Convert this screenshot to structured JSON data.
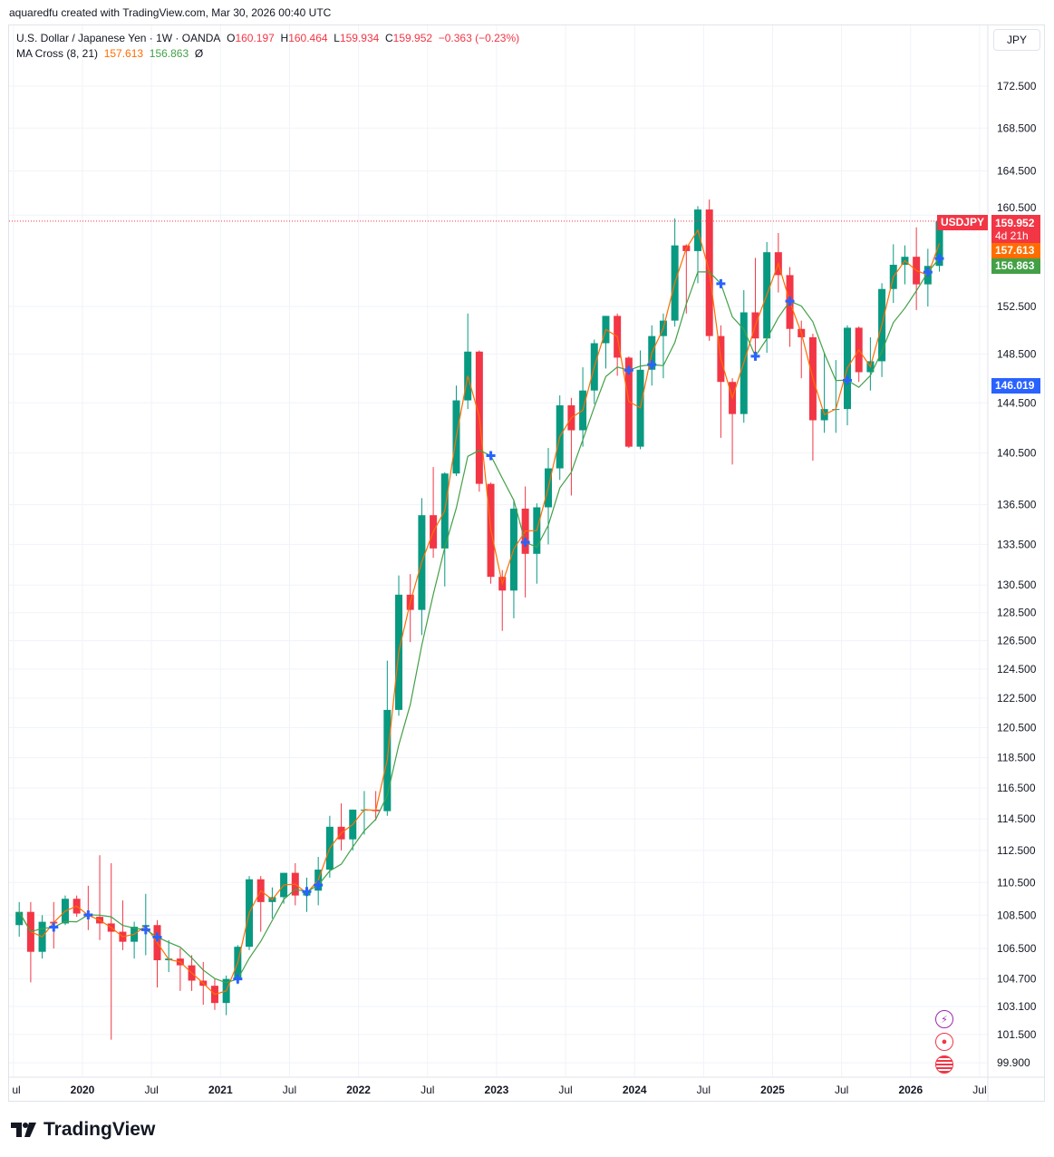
{
  "credit": "aquaredfu created with TradingView.com, Mar 30, 2026 00:40 UTC",
  "legend": {
    "symbol": "U.S. Dollar / Japanese Yen · 1W · OANDA",
    "o_label": "O",
    "open": "160.197",
    "h_label": "H",
    "high": "160.464",
    "l_label": "L",
    "low": "159.934",
    "c_label": "C",
    "close": "159.952",
    "change": "−0.363 (−0.23%)",
    "indicator": "MA Cross (8, 21)",
    "ma_fast": "157.613",
    "ma_slow": "156.863",
    "ma_extra": "Ø"
  },
  "currency_button": "JPY",
  "price_tags": {
    "symbol": "USDJPY",
    "last": "159.952",
    "countdown": "4d 21h",
    "ma_fast": "157.613",
    "ma_slow": "156.863",
    "cross_level": "146.019"
  },
  "colors": {
    "up": "#089981",
    "down": "#f23645",
    "ma_fast": "#ff6d00",
    "ma_slow": "#43a047",
    "cross": "#2962ff",
    "grid": "#f0f3fa"
  },
  "icons": [
    "lightning-icon",
    "record-icon",
    "us-flag-icon"
  ],
  "brand": "TradingView",
  "chart_data": {
    "type": "candlestick",
    "scale": "log",
    "ylim": [
      99.9,
      174
    ],
    "y_ticks": [
      "172.500",
      "168.500",
      "164.500",
      "160.500",
      "152.500",
      "148.500",
      "144.500",
      "140.500",
      "136.500",
      "133.500",
      "130.500",
      "128.500",
      "126.500",
      "124.500",
      "122.500",
      "120.500",
      "118.500",
      "116.500",
      "114.500",
      "112.500",
      "110.500",
      "108.500",
      "106.500",
      "104.700",
      "103.100",
      "101.500",
      "99.900"
    ],
    "x_ticks": [
      {
        "label": "ul",
        "t": 2019.5
      },
      {
        "label": "2020",
        "t": 2020
      },
      {
        "label": "Jul",
        "t": 2020.5
      },
      {
        "label": "2021",
        "t": 2021
      },
      {
        "label": "Jul",
        "t": 2021.5
      },
      {
        "label": "2022",
        "t": 2022
      },
      {
        "label": "Jul",
        "t": 2022.5
      },
      {
        "label": "2023",
        "t": 2023
      },
      {
        "label": "Jul",
        "t": 2023.5
      },
      {
        "label": "2024",
        "t": 2024
      },
      {
        "label": "Jul",
        "t": 2024.5
      },
      {
        "label": "2025",
        "t": 2025
      },
      {
        "label": "Jul",
        "t": 2025.5
      },
      {
        "label": "2026",
        "t": 2026
      },
      {
        "label": "Jul",
        "t": 2026.5
      }
    ],
    "ma_periods": [
      8,
      21
    ],
    "start": "2019-07",
    "ohlc": [
      [
        107.9,
        109.3,
        107.2,
        108.7
      ],
      [
        108.7,
        109.3,
        104.5,
        106.3
      ],
      [
        106.3,
        108.5,
        105.9,
        108.1
      ],
      [
        108.1,
        109.3,
        106.5,
        108.0
      ],
      [
        108.0,
        109.7,
        107.9,
        109.5
      ],
      [
        109.5,
        109.7,
        108.4,
        108.6
      ],
      [
        108.6,
        110.3,
        107.6,
        108.4
      ],
      [
        108.4,
        112.2,
        107.0,
        108.0
      ],
      [
        108.0,
        111.7,
        101.2,
        107.5
      ],
      [
        107.5,
        109.4,
        106.4,
        106.9
      ],
      [
        106.9,
        108.1,
        105.9,
        107.8
      ],
      [
        107.8,
        109.8,
        106.1,
        107.9
      ],
      [
        107.9,
        108.2,
        104.2,
        105.8
      ],
      [
        105.8,
        107.0,
        105.1,
        105.9
      ],
      [
        105.9,
        106.5,
        104.0,
        105.5
      ],
      [
        105.5,
        106.1,
        104.0,
        104.6
      ],
      [
        104.6,
        105.7,
        103.2,
        104.3
      ],
      [
        104.3,
        104.7,
        102.9,
        103.3
      ],
      [
        103.3,
        104.9,
        102.6,
        104.7
      ],
      [
        104.7,
        106.7,
        104.4,
        106.6
      ],
      [
        106.6,
        110.9,
        106.4,
        110.7
      ],
      [
        110.7,
        110.9,
        107.5,
        109.3
      ],
      [
        109.3,
        110.2,
        108.3,
        109.6
      ],
      [
        109.6,
        111.1,
        109.2,
        111.1
      ],
      [
        111.1,
        111.7,
        109.1,
        109.7
      ],
      [
        109.7,
        110.8,
        108.7,
        110.0
      ],
      [
        110.0,
        112.1,
        109.1,
        111.3
      ],
      [
        111.3,
        114.7,
        110.8,
        114.0
      ],
      [
        114.0,
        115.5,
        112.5,
        113.2
      ],
      [
        113.2,
        115.1,
        112.5,
        115.1
      ],
      [
        115.1,
        116.3,
        113.5,
        115.1
      ],
      [
        115.1,
        116.3,
        114.4,
        115.0
      ],
      [
        115.0,
        125.1,
        114.7,
        121.7
      ],
      [
        121.7,
        131.2,
        121.3,
        129.8
      ],
      [
        129.8,
        131.3,
        126.4,
        128.7
      ],
      [
        128.7,
        137.0,
        126.9,
        135.7
      ],
      [
        135.7,
        139.4,
        132.5,
        133.2
      ],
      [
        133.2,
        139.0,
        130.4,
        138.9
      ],
      [
        138.9,
        145.9,
        138.7,
        144.7
      ],
      [
        144.7,
        151.9,
        144.0,
        148.7
      ],
      [
        148.7,
        148.8,
        137.5,
        138.1
      ],
      [
        138.1,
        138.2,
        130.6,
        131.1
      ],
      [
        131.1,
        131.6,
        127.2,
        130.1
      ],
      [
        130.1,
        136.9,
        128.1,
        136.2
      ],
      [
        136.2,
        137.9,
        129.6,
        132.8
      ],
      [
        132.8,
        136.6,
        130.6,
        136.3
      ],
      [
        136.3,
        140.9,
        133.5,
        139.3
      ],
      [
        139.3,
        145.1,
        138.4,
        144.3
      ],
      [
        144.3,
        144.9,
        137.2,
        142.3
      ],
      [
        142.3,
        147.4,
        141.0,
        145.5
      ],
      [
        145.5,
        149.7,
        144.4,
        149.4
      ],
      [
        149.4,
        151.7,
        147.3,
        151.7
      ],
      [
        151.7,
        151.9,
        146.7,
        148.2
      ],
      [
        148.2,
        148.3,
        140.9,
        141.0
      ],
      [
        141.0,
        148.8,
        140.8,
        147.2
      ],
      [
        147.2,
        150.9,
        145.9,
        150.0
      ],
      [
        150.0,
        151.9,
        146.5,
        151.3
      ],
      [
        151.3,
        160.2,
        150.8,
        157.8
      ],
      [
        157.8,
        157.9,
        151.9,
        157.3
      ],
      [
        157.3,
        161.3,
        154.5,
        161.0
      ],
      [
        161.0,
        161.9,
        149.6,
        150.0
      ],
      [
        150.0,
        150.9,
        141.7,
        146.2
      ],
      [
        146.2,
        146.5,
        139.6,
        143.6
      ],
      [
        143.6,
        153.9,
        142.9,
        152.0
      ],
      [
        152.0,
        156.7,
        148.6,
        149.8
      ],
      [
        149.8,
        158.1,
        148.6,
        157.2
      ],
      [
        157.2,
        158.9,
        153.7,
        155.2
      ],
      [
        155.2,
        155.9,
        149.1,
        150.6
      ],
      [
        150.6,
        151.3,
        146.5,
        149.9
      ],
      [
        149.9,
        150.2,
        139.9,
        143.1
      ],
      [
        143.1,
        148.6,
        142.1,
        144.0
      ],
      [
        144.0,
        148.0,
        142.1,
        144.0
      ],
      [
        144.0,
        150.9,
        142.7,
        150.7
      ],
      [
        150.7,
        150.8,
        146.2,
        147.0
      ],
      [
        147.0,
        149.9,
        145.5,
        147.9
      ],
      [
        147.9,
        154.5,
        146.6,
        154.0
      ],
      [
        154.0,
        157.9,
        152.8,
        156.1
      ],
      [
        156.1,
        157.8,
        154.4,
        156.8
      ],
      [
        156.8,
        159.4,
        152.2,
        154.4
      ],
      [
        154.4,
        157.5,
        152.5,
        156.0
      ],
      [
        156.0,
        160.5,
        155.5,
        159.952
      ]
    ]
  }
}
